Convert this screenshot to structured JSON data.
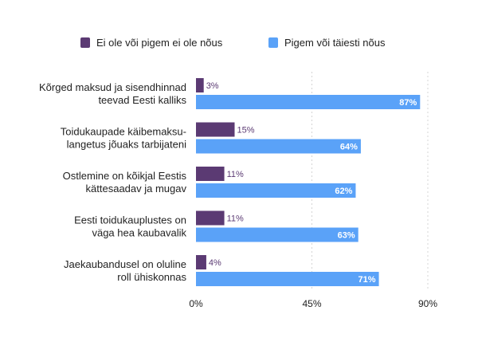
{
  "chart_data": {
    "type": "bar",
    "orientation": "horizontal",
    "categories": [
      [
        "Kõrged maksud ja sisendhinnad",
        "teevad Eesti kalliks"
      ],
      [
        "Toidukaupade käibemaksu-",
        "langetus jõuaks tarbijateni"
      ],
      [
        "Ostlemine on kõikjal Eestis",
        "kättesaadav ja mugav"
      ],
      [
        "Eesti toidukauplustes on",
        "väga hea kaubavalik"
      ],
      [
        "Jaekaubandusel on oluline",
        "roll ühiskonnas"
      ]
    ],
    "series": [
      {
        "name": "Ei ole või pigem ei ole nõus",
        "color": "#5b3a73",
        "values": [
          3,
          15,
          11,
          11,
          4
        ]
      },
      {
        "name": "Pigem või täiesti nõus",
        "color": "#5aa2f8",
        "values": [
          87,
          64,
          62,
          63,
          71
        ]
      }
    ],
    "value_suffix": "%",
    "xlim": [
      0,
      90
    ],
    "xticks": [
      0,
      45,
      90
    ],
    "xtick_labels": [
      "0%",
      "45%",
      "90%"
    ],
    "grid": "vertical-dashed",
    "legend": "top"
  }
}
